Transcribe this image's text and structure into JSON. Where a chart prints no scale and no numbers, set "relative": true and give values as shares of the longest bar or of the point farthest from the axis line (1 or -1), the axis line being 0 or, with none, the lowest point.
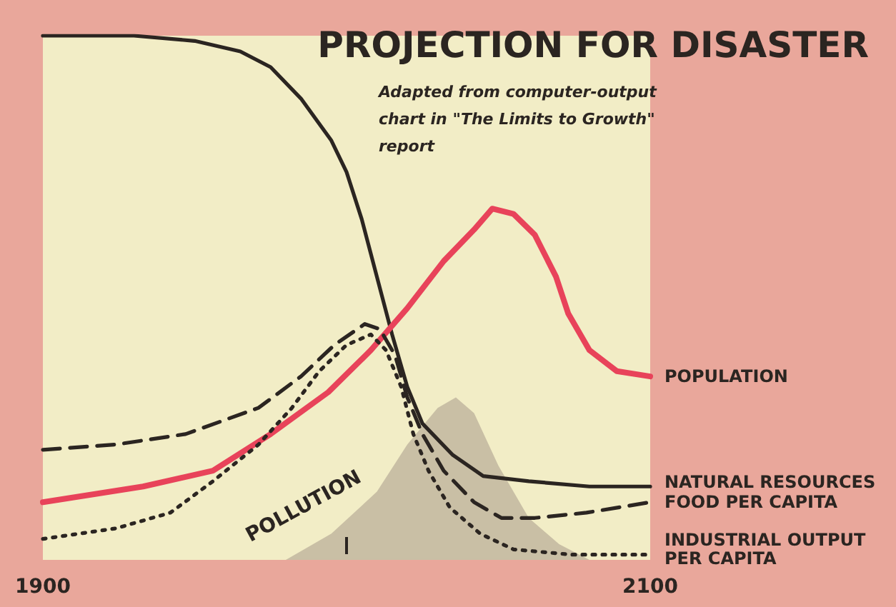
{
  "chart_data": {
    "type": "line",
    "title": "PROJECTION FOR DISASTER",
    "subtitle": "Adapted from computer-output chart in \"The Limits to Growth\" report",
    "relative": true,
    "xlim": [
      1900,
      2100
    ],
    "xticks": [
      1900,
      {
        "value": 2000,
        "label": null
      },
      2100
    ],
    "grid": false,
    "legend": "right",
    "series": [
      {
        "name": "POLLUTION",
        "type": "area",
        "color": "#c9bfa5",
        "x": [
          1980,
          1995,
          2010,
          2020,
          2030,
          2036,
          2042,
          2050,
          2060,
          2070,
          2080
        ],
        "values": [
          0,
          0.05,
          0.13,
          0.22,
          0.29,
          0.31,
          0.28,
          0.18,
          0.08,
          0.03,
          0
        ]
      },
      {
        "name": "NATURAL RESOURCES",
        "color": "#2b2521",
        "line_style": "solid",
        "x": [
          1900,
          1930,
          1950,
          1965,
          1975,
          1985,
          1995,
          2000,
          2005,
          2010,
          2015,
          2020,
          2025,
          2035,
          2045,
          2060,
          2080,
          2100
        ],
        "values": [
          1,
          1,
          0.99,
          0.97,
          0.94,
          0.88,
          0.8,
          0.74,
          0.65,
          0.54,
          0.43,
          0.33,
          0.26,
          0.2,
          0.16,
          0.15,
          0.14,
          0.14
        ]
      },
      {
        "name": "POPULATION",
        "color": "#e8435a",
        "line_style": "solid",
        "x": [
          1900,
          1933,
          1956,
          1975,
          1994,
          2008,
          2020,
          2032,
          2042,
          2048,
          2055,
          2062,
          2069,
          2073,
          2080,
          2089,
          2100
        ],
        "values": [
          0.11,
          0.14,
          0.17,
          0.24,
          0.32,
          0.4,
          0.48,
          0.57,
          0.63,
          0.67,
          0.66,
          0.62,
          0.54,
          0.47,
          0.4,
          0.36,
          0.35
        ]
      },
      {
        "name": "FOOD PER CAPITA",
        "color": "#2b2521",
        "line_style": "dashed",
        "x": [
          1900,
          1924,
          1947,
          1971,
          1985,
          1996,
          2006,
          2011,
          2016,
          2020,
          2025,
          2032,
          2042,
          2051,
          2062,
          2079,
          2100
        ],
        "values": [
          0.21,
          0.22,
          0.24,
          0.29,
          0.35,
          0.41,
          0.45,
          0.44,
          0.39,
          0.31,
          0.24,
          0.17,
          0.11,
          0.08,
          0.08,
          0.09,
          0.11
        ]
      },
      {
        "name": "INDUSTRIAL OUTPUT PER CAPITA",
        "color": "#2b2521",
        "line_style": "dotted",
        "x": [
          1900,
          1924,
          1942,
          1956,
          1971,
          1982,
          1991,
          2000,
          2008,
          2013,
          2018,
          2022,
          2027,
          2034,
          2044,
          2055,
          2074,
          2100
        ],
        "values": [
          0.04,
          0.06,
          0.09,
          0.15,
          0.22,
          0.29,
          0.36,
          0.41,
          0.43,
          0.4,
          0.33,
          0.24,
          0.17,
          0.1,
          0.05,
          0.02,
          0.01,
          0.01
        ]
      }
    ]
  }
}
